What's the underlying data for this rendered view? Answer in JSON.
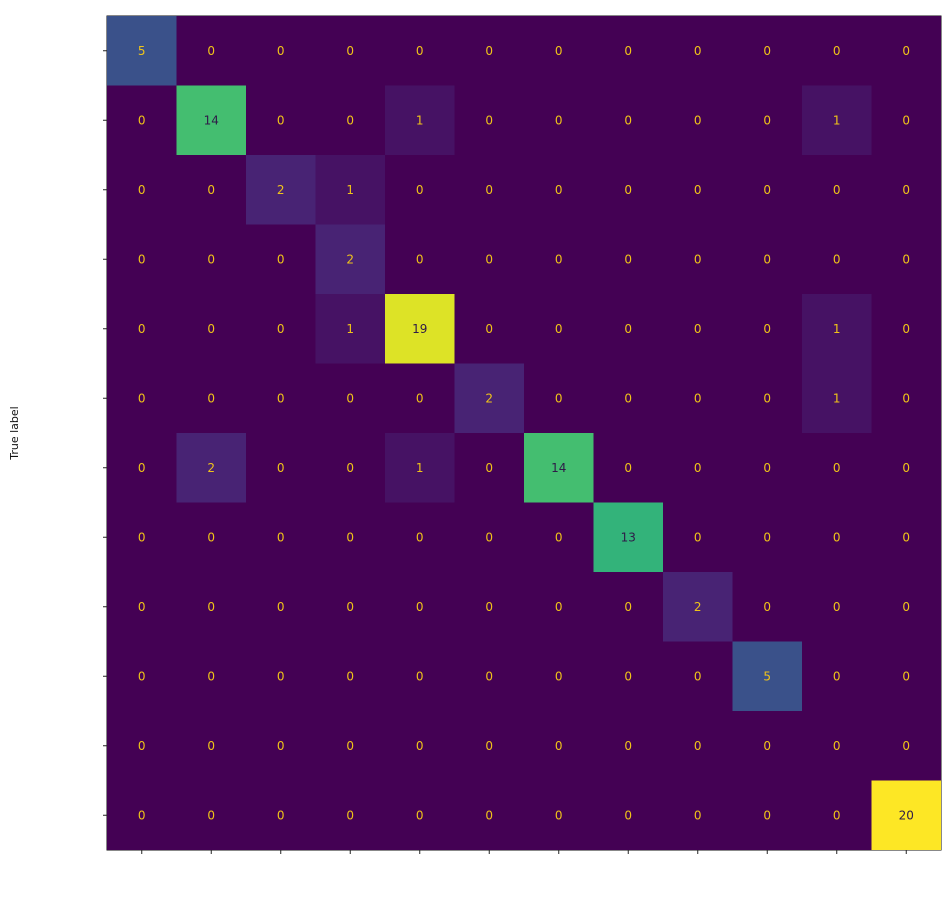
{
  "chart_data": {
    "type": "heatmap",
    "title": "",
    "xlabel": "",
    "ylabel": "True label",
    "x_tick_labels": [],
    "y_tick_labels": [],
    "colormap": "viridis",
    "value_range": [
      0,
      20
    ],
    "matrix": [
      [
        5,
        0,
        0,
        0,
        0,
        0,
        0,
        0,
        0,
        0,
        0,
        0
      ],
      [
        0,
        14,
        0,
        0,
        1,
        0,
        0,
        0,
        0,
        0,
        1,
        0
      ],
      [
        0,
        0,
        2,
        1,
        0,
        0,
        0,
        0,
        0,
        0,
        0,
        0
      ],
      [
        0,
        0,
        0,
        2,
        0,
        0,
        0,
        0,
        0,
        0,
        0,
        0
      ],
      [
        0,
        0,
        0,
        1,
        19,
        0,
        0,
        0,
        0,
        0,
        1,
        0
      ],
      [
        0,
        0,
        0,
        0,
        0,
        2,
        0,
        0,
        0,
        0,
        1,
        0
      ],
      [
        0,
        2,
        0,
        0,
        1,
        0,
        14,
        0,
        0,
        0,
        0,
        0
      ],
      [
        0,
        0,
        0,
        0,
        0,
        0,
        0,
        13,
        0,
        0,
        0,
        0
      ],
      [
        0,
        0,
        0,
        0,
        0,
        0,
        0,
        0,
        2,
        0,
        0,
        0
      ],
      [
        0,
        0,
        0,
        0,
        0,
        0,
        0,
        0,
        0,
        5,
        0,
        0
      ],
      [
        0,
        0,
        0,
        0,
        0,
        0,
        0,
        0,
        0,
        0,
        0,
        0
      ],
      [
        0,
        0,
        0,
        0,
        0,
        0,
        0,
        0,
        0,
        0,
        0,
        20
      ]
    ],
    "text_color_dark_cells": "#f0c419",
    "text_color_light_cells": "#2f1b48"
  }
}
